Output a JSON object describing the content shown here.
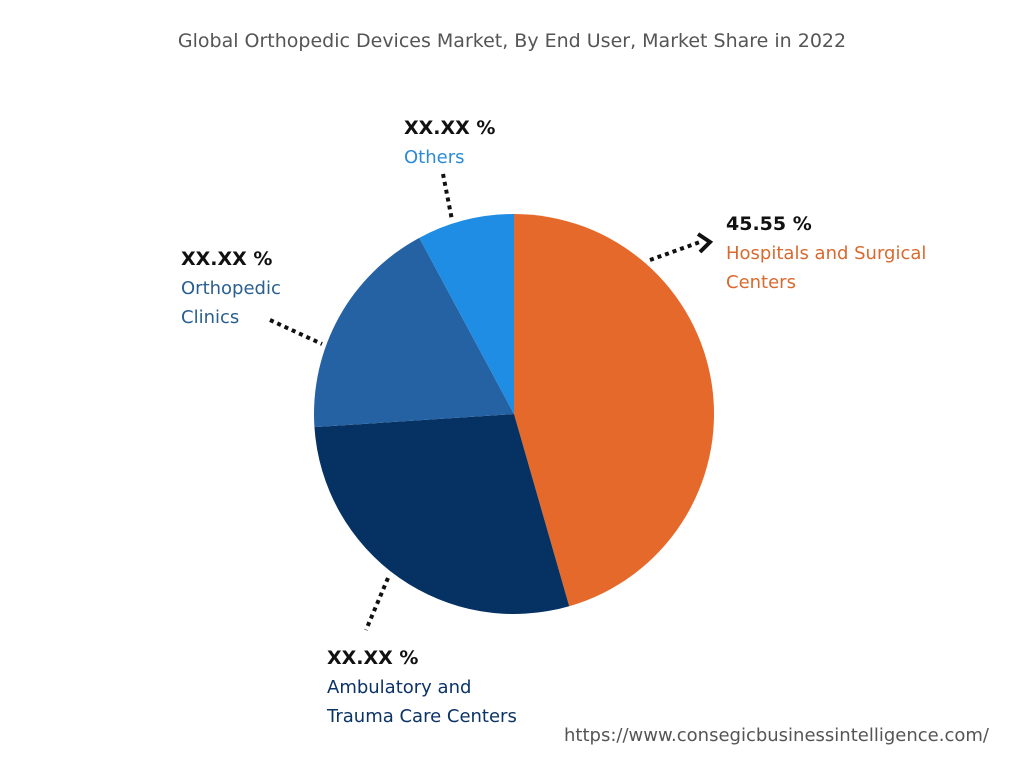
{
  "chart_data": {
    "type": "pie",
    "title": "Global Orthopedic Devices Market, By End User, Market Share in 2022",
    "slices": [
      {
        "name": "Hospitals and Surgical Centers",
        "label_line1": "Hospitals and Surgical",
        "label_line2": "Centers",
        "value_label": "45.55 %",
        "value": 45.55,
        "color": "#E5692A",
        "text_color": "#D9692D"
      },
      {
        "name": "Ambulatory and Trauma Care Centers",
        "label_line1": "Ambulatory and",
        "label_line2": "Trauma Care Centers",
        "value_label": "XX.XX %",
        "value": 28.4,
        "color": "#053263",
        "text_color": "#0B3366"
      },
      {
        "name": "Orthopedic Clinics",
        "label_line1": "Orthopedic",
        "label_line2": "Clinics",
        "value_label": "XX.XX %",
        "value": 18.2,
        "color": "#2562A4",
        "text_color": "#2A5F8F"
      },
      {
        "name": "Others",
        "label_line1": "Others",
        "label_line2": "",
        "value_label": "XX.XX %",
        "value": 7.85,
        "color": "#1E8DE3",
        "text_color": "#2C8AD8"
      }
    ]
  },
  "footer": {
    "url": "https://www.consegicbusinessintelligence.com/"
  }
}
